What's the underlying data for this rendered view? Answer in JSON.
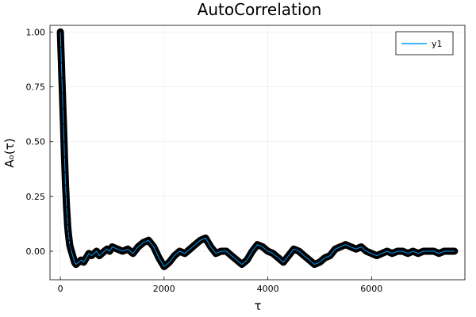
{
  "chart_data": {
    "type": "line",
    "title": "AutoCorrelation",
    "xlabel": "τ",
    "ylabel": "Aₒ(τ)",
    "xlim": [
      -200,
      7800
    ],
    "ylim": [
      -0.13,
      1.03
    ],
    "xticks": [
      0,
      2000,
      4000,
      6000
    ],
    "xtick_labels": [
      "0",
      "2000",
      "4000",
      "6000"
    ],
    "yticks": [
      0.0,
      0.25,
      0.5,
      0.75,
      1.0
    ],
    "ytick_labels": [
      "0.00",
      "0.25",
      "0.50",
      "0.75",
      "1.00"
    ],
    "grid": true,
    "legend_position": "top-right",
    "series": [
      {
        "name": "y1",
        "color": "#009AFA",
        "marker_color": "#000000",
        "x": [
          0,
          10,
          20,
          30,
          40,
          50,
          60,
          70,
          80,
          90,
          100,
          110,
          120,
          130,
          140,
          150,
          160,
          170,
          180,
          190,
          200,
          225,
          250,
          275,
          300,
          350,
          400,
          450,
          500,
          550,
          600,
          650,
          700,
          750,
          800,
          850,
          900,
          950,
          1000,
          1100,
          1200,
          1300,
          1400,
          1500,
          1600,
          1700,
          1800,
          1900,
          2000,
          2100,
          2200,
          2300,
          2400,
          2500,
          2600,
          2700,
          2800,
          2900,
          3000,
          3100,
          3200,
          3300,
          3400,
          3500,
          3600,
          3700,
          3800,
          3900,
          4000,
          4100,
          4200,
          4300,
          4400,
          4500,
          4600,
          4700,
          4800,
          4900,
          5000,
          5100,
          5200,
          5300,
          5400,
          5500,
          5600,
          5700,
          5800,
          5900,
          6000,
          6100,
          6200,
          6300,
          6400,
          6500,
          6600,
          6700,
          6800,
          6900,
          7000,
          7100,
          7200,
          7300,
          7400,
          7500,
          7600
        ],
        "y": [
          1.0,
          0.93,
          0.86,
          0.79,
          0.72,
          0.65,
          0.58,
          0.5,
          0.43,
          0.36,
          0.3,
          0.25,
          0.2,
          0.16,
          0.12,
          0.09,
          0.07,
          0.05,
          0.03,
          0.02,
          0.01,
          -0.01,
          -0.03,
          -0.05,
          -0.06,
          -0.05,
          -0.04,
          -0.05,
          -0.03,
          -0.01,
          -0.02,
          -0.01,
          0.0,
          -0.02,
          -0.01,
          0.0,
          0.01,
          0.0,
          0.02,
          0.01,
          0.0,
          0.01,
          -0.01,
          0.02,
          0.04,
          0.05,
          0.02,
          -0.03,
          -0.07,
          -0.05,
          -0.02,
          0.0,
          -0.01,
          0.01,
          0.03,
          0.05,
          0.06,
          0.02,
          -0.01,
          0.0,
          0.0,
          -0.02,
          -0.04,
          -0.06,
          -0.04,
          0.0,
          0.03,
          0.02,
          0.0,
          -0.01,
          -0.03,
          -0.05,
          -0.02,
          0.01,
          0.0,
          -0.02,
          -0.04,
          -0.06,
          -0.05,
          -0.03,
          -0.02,
          0.01,
          0.02,
          0.03,
          0.02,
          0.01,
          0.02,
          0.0,
          -0.01,
          -0.02,
          -0.01,
          0.0,
          -0.01,
          0.0,
          0.0,
          -0.01,
          0.0,
          -0.01,
          0.0,
          0.0,
          0.0,
          -0.01,
          0.0,
          0.0,
          0.0
        ]
      }
    ]
  }
}
